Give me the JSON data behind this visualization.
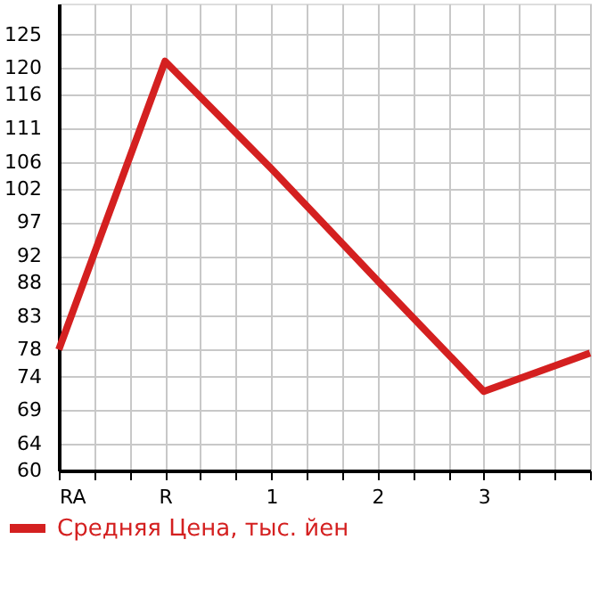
{
  "chart_data": {
    "type": "line",
    "categories": [
      "RA",
      "R",
      "1",
      "2",
      "3",
      null
    ],
    "series": [
      {
        "name": "Средняя Цена, тыс. йен",
        "color": "#d42020",
        "values": [
          78,
          121,
          105,
          88.3,
          71.8,
          77.5
        ]
      }
    ],
    "ylim": [
      60,
      129.6
    ],
    "yticks": [
      60,
      64,
      69,
      74,
      78,
      83,
      88,
      92,
      97,
      102,
      106,
      111,
      116,
      120,
      125
    ],
    "grid": true,
    "legend": "bottom left",
    "marker": "none",
    "line_style": "solid"
  }
}
